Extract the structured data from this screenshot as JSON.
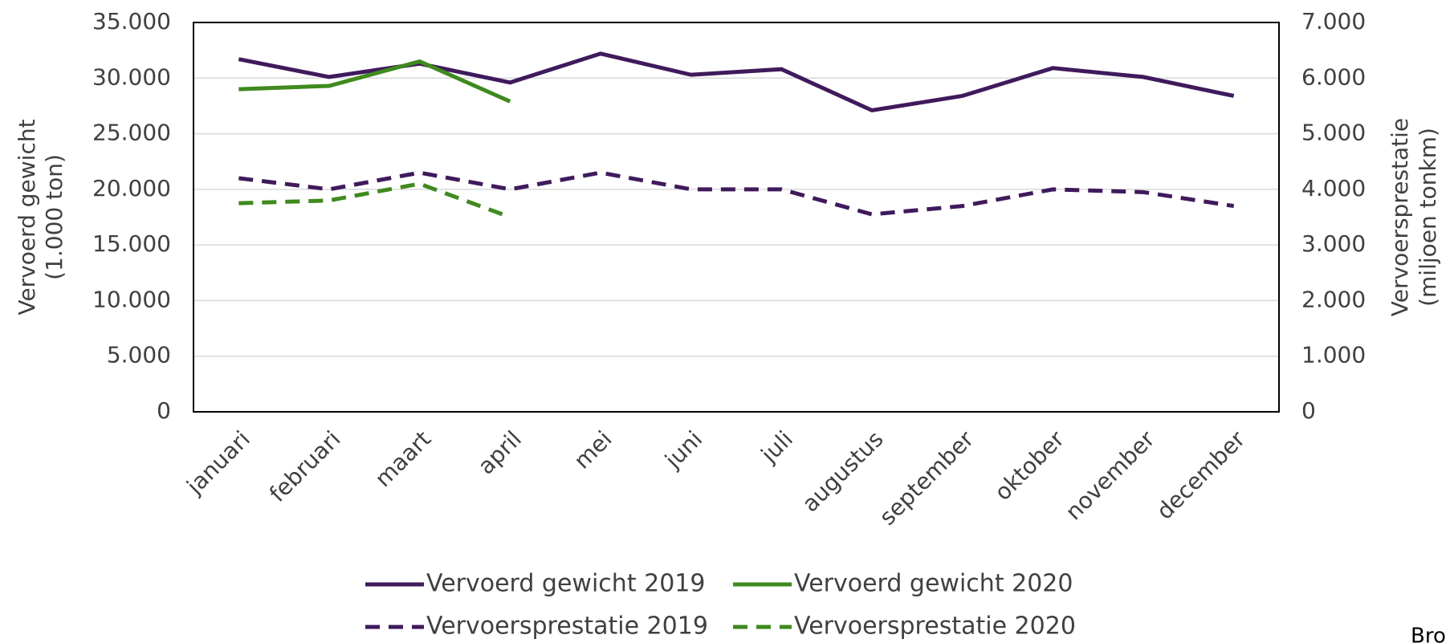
{
  "chart_data": {
    "type": "line",
    "categories": [
      "januari",
      "februari",
      "maart",
      "april",
      "mei",
      "juni",
      "juli",
      "augustus",
      "september",
      "oktober",
      "november",
      "december"
    ],
    "series": [
      {
        "name": "Vervoerd gewicht 2019",
        "color": "#3f1a5c",
        "dash": false,
        "values": [
          31700,
          30100,
          31300,
          29600,
          32200,
          30300,
          30800,
          27100,
          28400,
          30900,
          30100,
          28400
        ]
      },
      {
        "name": "Vervoerd gewicht 2020",
        "color": "#3f8a1e",
        "dash": false,
        "values": [
          29000,
          29300,
          31500,
          27900,
          null,
          null,
          null,
          null,
          null,
          null,
          null,
          null
        ]
      },
      {
        "name": "Vervoersprestatie 2019",
        "color": "#3f1a5c",
        "dash": true,
        "axis": "y2",
        "values": [
          4200,
          4000,
          4300,
          4000,
          4300,
          4000,
          4000,
          3550,
          3700,
          4000,
          3950,
          3700
        ]
      },
      {
        "name": "Vervoersprestatie 2020",
        "color": "#3f8a1e",
        "dash": true,
        "axis": "y2",
        "values": [
          3750,
          3800,
          4100,
          3500,
          null,
          null,
          null,
          null,
          null,
          null,
          null,
          null
        ]
      }
    ],
    "ylabel": [
      "Vervoerd gewicht",
      "(1.000 ton)"
    ],
    "y2label": [
      "Vervoersprestatie",
      "(miljoen tonkm)"
    ],
    "ylim": [
      0,
      35000
    ],
    "yticks": [
      0,
      {
        "value": 5000,
        "label": "5.000"
      },
      {
        "value": 10000,
        "label": "10.000"
      },
      {
        "value": 15000,
        "label": "15.000"
      },
      {
        "value": 20000,
        "label": "20.000"
      },
      {
        "value": 25000,
        "label": "25.000"
      },
      {
        "value": 30000,
        "label": "30.000"
      },
      {
        "value": 35000,
        "label": "35.000"
      }
    ],
    "y2lim": [
      0,
      7000
    ],
    "y2ticks": [
      0,
      {
        "value": 1000,
        "label": "1.000"
      },
      {
        "value": 2000,
        "label": "2.000"
      },
      {
        "value": 3000,
        "label": "3.000"
      },
      {
        "value": 4000,
        "label": "4.000"
      },
      {
        "value": 5000,
        "label": "5.000"
      },
      {
        "value": 6000,
        "label": "6.000"
      },
      {
        "value": 7000,
        "label": "7.000"
      }
    ],
    "grid": true,
    "legend": "bottom",
    "source": "Bro"
  }
}
